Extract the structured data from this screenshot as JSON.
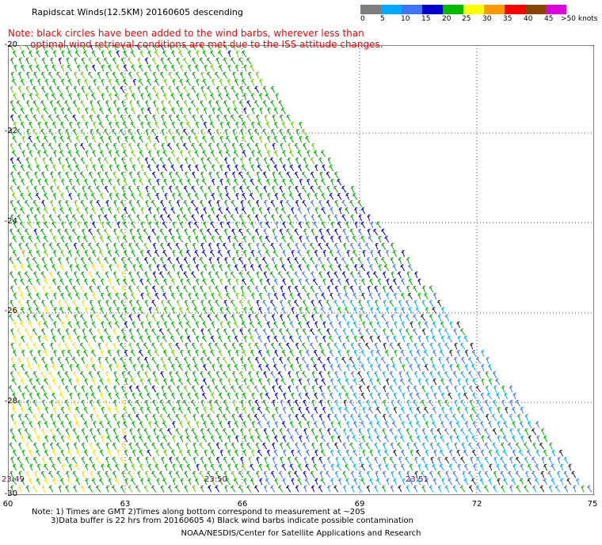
{
  "header": {
    "title": "Rapidscat Winds(12.5KM) 20160605 descending",
    "note_line1": "Note: black circles have been added to the wind barbs, wherever less than",
    "note_line2": "optimal wind retrieval conditions are met due to the ISS attitude changes."
  },
  "color_scale": {
    "labels": [
      "0",
      "5",
      "10",
      "15",
      "20",
      "25",
      "30",
      "35",
      "40",
      "45",
      ">50 knots"
    ],
    "colors": [
      "#7d7d7d",
      "#00aaff",
      "#3d73ff",
      "#0000cc",
      "#00bb00",
      "#99ff00",
      "#ffff00",
      "#ff9900",
      "#ff0000",
      "#884400",
      "#dd00dd",
      "#7700aa",
      "#440066"
    ]
  },
  "map": {
    "lat_labels": [
      "-20",
      "-22",
      "-24",
      "-26",
      "-28",
      "-30"
    ],
    "lon_labels": [
      "60",
      "63",
      "66",
      "69",
      "72",
      "75"
    ],
    "time_labels": [
      "23:49",
      "23:50",
      "23:51"
    ]
  },
  "footer": {
    "line1": "Note: 1) Times are GMT 2)Times along bottom correspond to measurement at ~20S",
    "line2": "3)Data buffer is 22 hrs from 20160605 4) Black wind barbs indicate possible contamination",
    "credit": "NOAA/NESDIS/Center for Satellite Applications and Research"
  }
}
